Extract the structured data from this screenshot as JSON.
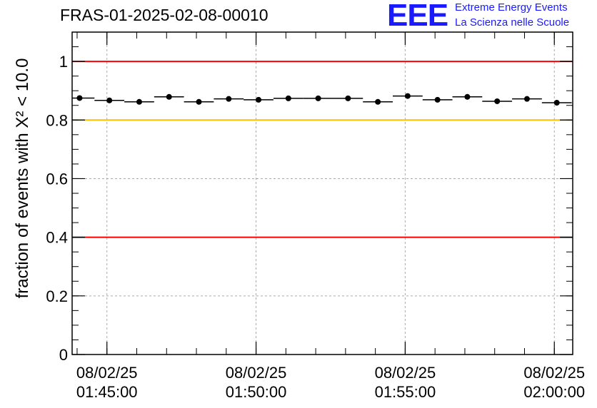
{
  "header": {
    "title": "FRAS-01-2025-02-08-00010"
  },
  "logo": {
    "mark": "EEE",
    "line1": "Extreme Energy Events",
    "line2": "La Scienza nelle Scuole",
    "color": "#1a1aff"
  },
  "chart_data": {
    "type": "scatter",
    "ylabel": "fraction of events with Χ² < 10.0",
    "ylim": [
      0,
      1.1
    ],
    "y_ticks": [
      {
        "value": 0,
        "label": "0"
      },
      {
        "value": 0.2,
        "label": "0.2"
      },
      {
        "value": 0.4,
        "label": "0.4"
      },
      {
        "value": 0.6,
        "label": "0.6"
      },
      {
        "value": 0.8,
        "label": "0.8"
      },
      {
        "value": 1.0,
        "label": "1"
      }
    ],
    "xlim": [
      "01:43:50",
      "02:00:37"
    ],
    "x_ticks": [
      {
        "time": "01:45:00",
        "date": "08/02/25"
      },
      {
        "time": "01:50:00",
        "date": "08/02/25"
      },
      {
        "time": "01:55:00",
        "date": "08/02/25"
      },
      {
        "time": "02:00:00",
        "date": "08/02/25"
      }
    ],
    "bin_width_seconds": 60,
    "grid": true,
    "reference_lines": [
      {
        "value": 1.0,
        "color": "#ff0000"
      },
      {
        "value": 0.8,
        "color": "#ffc000"
      },
      {
        "value": 0.4,
        "color": "#ff0000"
      }
    ],
    "points": [
      {
        "x": "01:44:05",
        "y": 0.875
      },
      {
        "x": "01:45:05",
        "y": 0.867
      },
      {
        "x": "01:46:05",
        "y": 0.862
      },
      {
        "x": "01:47:05",
        "y": 0.879
      },
      {
        "x": "01:48:05",
        "y": 0.862
      },
      {
        "x": "01:49:05",
        "y": 0.872
      },
      {
        "x": "01:50:05",
        "y": 0.869
      },
      {
        "x": "01:51:05",
        "y": 0.874
      },
      {
        "x": "01:52:05",
        "y": 0.874
      },
      {
        "x": "01:53:05",
        "y": 0.874
      },
      {
        "x": "01:54:05",
        "y": 0.862
      },
      {
        "x": "01:55:05",
        "y": 0.882
      },
      {
        "x": "01:56:05",
        "y": 0.869
      },
      {
        "x": "01:57:05",
        "y": 0.879
      },
      {
        "x": "01:58:05",
        "y": 0.864
      },
      {
        "x": "01:59:05",
        "y": 0.872
      },
      {
        "x": "02:00:05",
        "y": 0.859
      }
    ]
  }
}
